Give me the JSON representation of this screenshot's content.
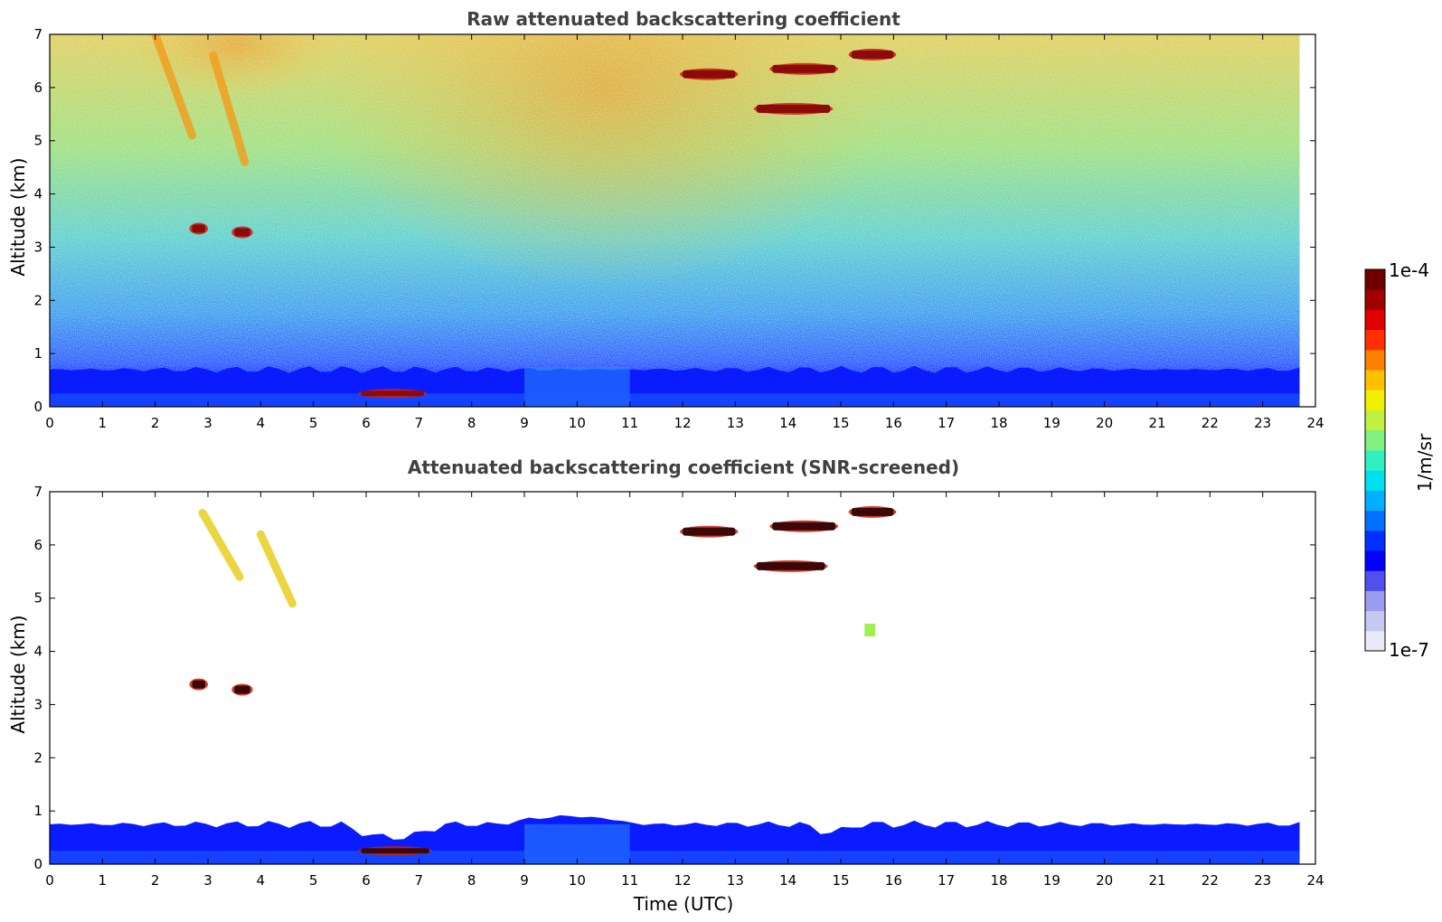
{
  "chart_data": [
    {
      "type": "heatmap",
      "title": "Raw attenuated backscattering coefficient",
      "xlabel": "",
      "ylabel": "Altitude (km)",
      "xlim": [
        0,
        24
      ],
      "ylim": [
        0,
        7
      ],
      "xticks": [
        "0",
        "1",
        "2",
        "3",
        "4",
        "5",
        "6",
        "7",
        "8",
        "9",
        "10",
        "11",
        "12",
        "13",
        "14",
        "15",
        "16",
        "17",
        "18",
        "19",
        "20",
        "21",
        "22",
        "23",
        "24"
      ],
      "yticks": [
        "0",
        "1",
        "2",
        "3",
        "4",
        "5",
        "6",
        "7"
      ],
      "data_end_time": 23.7,
      "features": [
        {
          "kind": "boundary_layer",
          "time": [
            0,
            23.7
          ],
          "top_km": 0.7
        },
        {
          "kind": "cloud",
          "time": [
            5.9,
            7.1
          ],
          "alt_km": 0.25
        },
        {
          "kind": "cloud",
          "time": [
            2.7,
            2.95
          ],
          "alt_km": 3.35
        },
        {
          "kind": "cloud",
          "time": [
            3.5,
            3.8
          ],
          "alt_km": 3.28
        },
        {
          "kind": "cloud",
          "time": [
            12.0,
            13.0
          ],
          "alt_km": 6.25
        },
        {
          "kind": "cloud",
          "time": [
            13.7,
            14.9
          ],
          "alt_km": 6.35
        },
        {
          "kind": "cloud",
          "time": [
            13.4,
            14.8
          ],
          "alt_km": 5.6
        },
        {
          "kind": "cloud",
          "time": [
            15.2,
            16.0
          ],
          "alt_km": 6.62
        },
        {
          "kind": "cirrus_fallstreak",
          "time": [
            2.0,
            5.0
          ],
          "alt_km": [
            4.6,
            7.0
          ]
        }
      ]
    },
    {
      "type": "heatmap",
      "title": "Attenuated backscattering coefficient (SNR-screened)",
      "xlabel": "Time (UTC)",
      "ylabel": "Altitude (km)",
      "xlim": [
        0,
        24
      ],
      "ylim": [
        0,
        7
      ],
      "xticks": [
        "0",
        "1",
        "2",
        "3",
        "4",
        "5",
        "6",
        "7",
        "8",
        "9",
        "10",
        "11",
        "12",
        "13",
        "14",
        "15",
        "16",
        "17",
        "18",
        "19",
        "20",
        "21",
        "22",
        "23",
        "24"
      ],
      "yticks": [
        "0",
        "1",
        "2",
        "3",
        "4",
        "5",
        "6",
        "7"
      ],
      "data_end_time": 23.7,
      "features": [
        {
          "kind": "boundary_layer",
          "time": [
            0,
            23.7
          ],
          "top_km": 0.75
        },
        {
          "kind": "cloud",
          "time": [
            5.9,
            7.2
          ],
          "alt_km": 0.25
        },
        {
          "kind": "cloud",
          "time": [
            2.7,
            2.95
          ],
          "alt_km": 3.38
        },
        {
          "kind": "cloud",
          "time": [
            3.5,
            3.8
          ],
          "alt_km": 3.28
        },
        {
          "kind": "cloud",
          "time": [
            12.0,
            13.0
          ],
          "alt_km": 6.25
        },
        {
          "kind": "cloud",
          "time": [
            13.7,
            14.9
          ],
          "alt_km": 6.35
        },
        {
          "kind": "cloud",
          "time": [
            13.4,
            14.7
          ],
          "alt_km": 5.6
        },
        {
          "kind": "cloud",
          "time": [
            15.2,
            16.0
          ],
          "alt_km": 6.62
        },
        {
          "kind": "aerosol_patch",
          "time": [
            15.45,
            15.65
          ],
          "alt_km": 4.4
        },
        {
          "kind": "cirrus_fallstreak",
          "time": [
            2.9,
            5.0
          ],
          "alt_km": [
            4.9,
            6.6
          ]
        }
      ]
    }
  ],
  "colorbar": {
    "min_label": "1e-7",
    "max_label": "1e-4",
    "unit_label": "1/m/sr",
    "colors": [
      "#eaeaf8",
      "#c8c8f4",
      "#9c9cf0",
      "#5050ee",
      "#0000ff",
      "#0030ff",
      "#0070ff",
      "#00b0ff",
      "#00e0f0",
      "#30f0c0",
      "#80f080",
      "#c0f040",
      "#f0f000",
      "#ffc000",
      "#ff8000",
      "#ff3000",
      "#e00000",
      "#a00000",
      "#700000"
    ]
  }
}
